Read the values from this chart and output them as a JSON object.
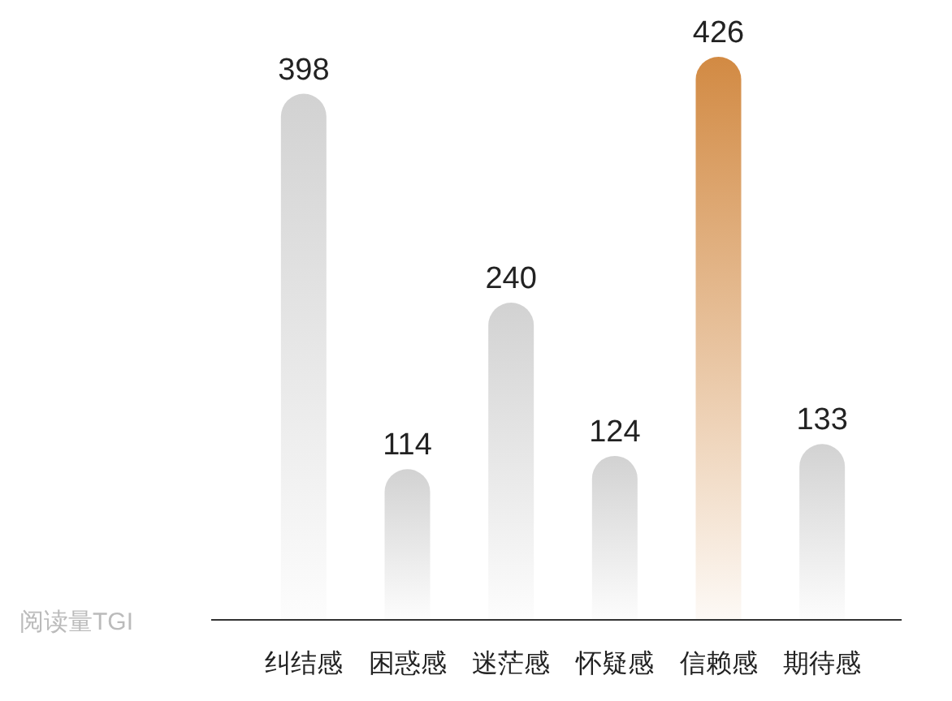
{
  "chart_data": {
    "type": "bar",
    "ylabel": "阅读量TGI",
    "categories": [
      "纠结感",
      "困惑感",
      "迷茫感",
      "怀疑感",
      "信赖感",
      "期待感"
    ],
    "values": [
      398,
      114,
      240,
      124,
      426,
      133
    ],
    "colors": [
      "#d2d2d2",
      "#d2d2d2",
      "#d2d2d2",
      "#d2d2d2",
      "#d28a43",
      "#d2d2d2"
    ],
    "data_labels": true
  }
}
